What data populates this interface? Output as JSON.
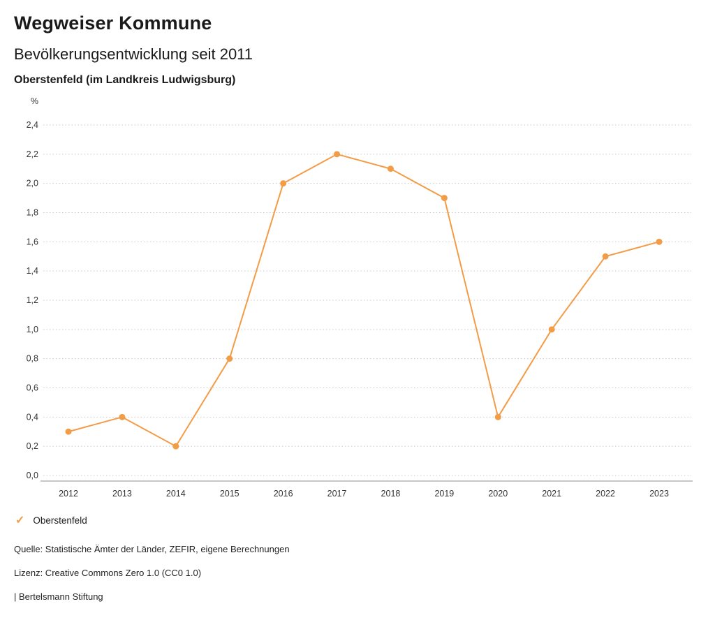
{
  "accent_color": "#F39C47",
  "header": {
    "title": "Wegweiser Kommune",
    "subtitle": "Bevölkerungsentwicklung seit 2011",
    "location": "Oberstenfeld (im Landkreis Ludwigsburg)"
  },
  "chart_data": {
    "type": "line",
    "title": "Bevölkerungsentwicklung seit 2011",
    "unit_label": "%",
    "categories": [
      "2012",
      "2013",
      "2014",
      "2015",
      "2016",
      "2017",
      "2018",
      "2019",
      "2020",
      "2021",
      "2022",
      "2023"
    ],
    "series": [
      {
        "name": "Oberstenfeld",
        "color": "#F39C47",
        "values": [
          0.3,
          0.4,
          0.2,
          0.8,
          2.0,
          2.2,
          2.1,
          1.9,
          0.4,
          1.0,
          1.5,
          1.6
        ]
      }
    ],
    "ylim": [
      0.0,
      2.4
    ],
    "ytick_step": 0.2,
    "grid": true,
    "grid_style": "dotted",
    "legend_position": "bottom",
    "decimal_separator": ","
  },
  "legend": {
    "items": [
      {
        "label": "Oberstenfeld",
        "color": "#F39C47",
        "marker": "check"
      }
    ]
  },
  "footer": {
    "source": "Quelle: Statistische Ämter der Länder, ZEFIR, eigene Berechnungen",
    "license": "Lizenz: Creative Commons Zero 1.0 (CC0 1.0)",
    "attribution": "| Bertelsmann Stiftung"
  }
}
